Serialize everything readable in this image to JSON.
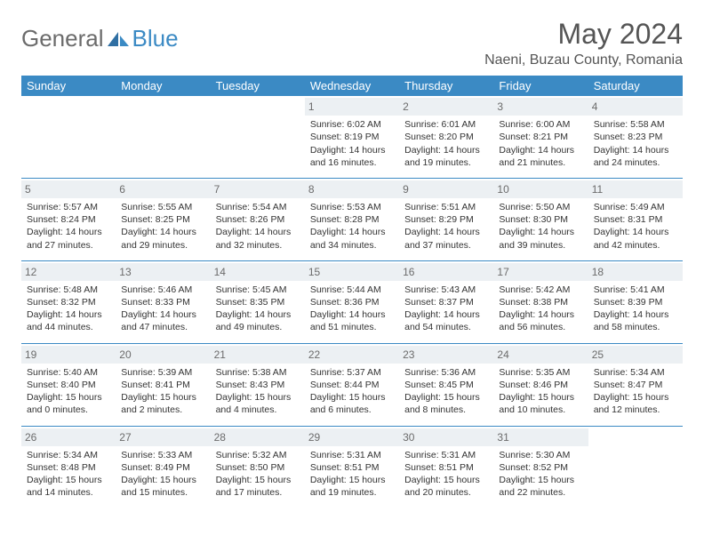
{
  "brand": {
    "part1": "General",
    "part2": "Blue"
  },
  "title": "May 2024",
  "location": "Naeni, Buzau County, Romania",
  "colors": {
    "accent": "#3b8ac4",
    "dayHeaderBg": "#ecf0f3",
    "text": "#333333",
    "muted": "#6b6b6b"
  },
  "weekdays": [
    "Sunday",
    "Monday",
    "Tuesday",
    "Wednesday",
    "Thursday",
    "Friday",
    "Saturday"
  ],
  "weeks": [
    [
      null,
      null,
      null,
      {
        "n": "1",
        "sr": "6:02 AM",
        "ss": "8:19 PM",
        "dl": "14 hours and 16 minutes."
      },
      {
        "n": "2",
        "sr": "6:01 AM",
        "ss": "8:20 PM",
        "dl": "14 hours and 19 minutes."
      },
      {
        "n": "3",
        "sr": "6:00 AM",
        "ss": "8:21 PM",
        "dl": "14 hours and 21 minutes."
      },
      {
        "n": "4",
        "sr": "5:58 AM",
        "ss": "8:23 PM",
        "dl": "14 hours and 24 minutes."
      }
    ],
    [
      {
        "n": "5",
        "sr": "5:57 AM",
        "ss": "8:24 PM",
        "dl": "14 hours and 27 minutes."
      },
      {
        "n": "6",
        "sr": "5:55 AM",
        "ss": "8:25 PM",
        "dl": "14 hours and 29 minutes."
      },
      {
        "n": "7",
        "sr": "5:54 AM",
        "ss": "8:26 PM",
        "dl": "14 hours and 32 minutes."
      },
      {
        "n": "8",
        "sr": "5:53 AM",
        "ss": "8:28 PM",
        "dl": "14 hours and 34 minutes."
      },
      {
        "n": "9",
        "sr": "5:51 AM",
        "ss": "8:29 PM",
        "dl": "14 hours and 37 minutes."
      },
      {
        "n": "10",
        "sr": "5:50 AM",
        "ss": "8:30 PM",
        "dl": "14 hours and 39 minutes."
      },
      {
        "n": "11",
        "sr": "5:49 AM",
        "ss": "8:31 PM",
        "dl": "14 hours and 42 minutes."
      }
    ],
    [
      {
        "n": "12",
        "sr": "5:48 AM",
        "ss": "8:32 PM",
        "dl": "14 hours and 44 minutes."
      },
      {
        "n": "13",
        "sr": "5:46 AM",
        "ss": "8:33 PM",
        "dl": "14 hours and 47 minutes."
      },
      {
        "n": "14",
        "sr": "5:45 AM",
        "ss": "8:35 PM",
        "dl": "14 hours and 49 minutes."
      },
      {
        "n": "15",
        "sr": "5:44 AM",
        "ss": "8:36 PM",
        "dl": "14 hours and 51 minutes."
      },
      {
        "n": "16",
        "sr": "5:43 AM",
        "ss": "8:37 PM",
        "dl": "14 hours and 54 minutes."
      },
      {
        "n": "17",
        "sr": "5:42 AM",
        "ss": "8:38 PM",
        "dl": "14 hours and 56 minutes."
      },
      {
        "n": "18",
        "sr": "5:41 AM",
        "ss": "8:39 PM",
        "dl": "14 hours and 58 minutes."
      }
    ],
    [
      {
        "n": "19",
        "sr": "5:40 AM",
        "ss": "8:40 PM",
        "dl": "15 hours and 0 minutes."
      },
      {
        "n": "20",
        "sr": "5:39 AM",
        "ss": "8:41 PM",
        "dl": "15 hours and 2 minutes."
      },
      {
        "n": "21",
        "sr": "5:38 AM",
        "ss": "8:43 PM",
        "dl": "15 hours and 4 minutes."
      },
      {
        "n": "22",
        "sr": "5:37 AM",
        "ss": "8:44 PM",
        "dl": "15 hours and 6 minutes."
      },
      {
        "n": "23",
        "sr": "5:36 AM",
        "ss": "8:45 PM",
        "dl": "15 hours and 8 minutes."
      },
      {
        "n": "24",
        "sr": "5:35 AM",
        "ss": "8:46 PM",
        "dl": "15 hours and 10 minutes."
      },
      {
        "n": "25",
        "sr": "5:34 AM",
        "ss": "8:47 PM",
        "dl": "15 hours and 12 minutes."
      }
    ],
    [
      {
        "n": "26",
        "sr": "5:34 AM",
        "ss": "8:48 PM",
        "dl": "15 hours and 14 minutes."
      },
      {
        "n": "27",
        "sr": "5:33 AM",
        "ss": "8:49 PM",
        "dl": "15 hours and 15 minutes."
      },
      {
        "n": "28",
        "sr": "5:32 AM",
        "ss": "8:50 PM",
        "dl": "15 hours and 17 minutes."
      },
      {
        "n": "29",
        "sr": "5:31 AM",
        "ss": "8:51 PM",
        "dl": "15 hours and 19 minutes."
      },
      {
        "n": "30",
        "sr": "5:31 AM",
        "ss": "8:51 PM",
        "dl": "15 hours and 20 minutes."
      },
      {
        "n": "31",
        "sr": "5:30 AM",
        "ss": "8:52 PM",
        "dl": "15 hours and 22 minutes."
      },
      null
    ]
  ],
  "labels": {
    "sunrise": "Sunrise:",
    "sunset": "Sunset:",
    "daylight": "Daylight:"
  }
}
